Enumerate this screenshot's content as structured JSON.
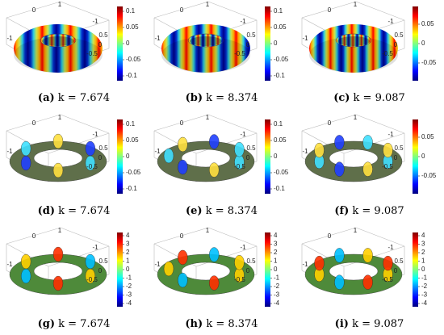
{
  "panels": [
    {
      "label": "(a)",
      "text": "k = 7.674",
      "colorbar": [
        "0.1",
        "0.05",
        "0",
        "-0.05",
        "-0.1"
      ],
      "axes": [
        "-1",
        "0",
        "1",
        "-1",
        "0.5",
        "0",
        "-0.5"
      ]
    },
    {
      "label": "(b)",
      "text": "k = 8.374",
      "colorbar": [
        "0.1",
        "0.05",
        "0",
        "-0.05",
        "-0.1"
      ],
      "axes": [
        "-1",
        "0",
        "1",
        "-1",
        "0.5",
        "0",
        "-0.5"
      ]
    },
    {
      "label": "(c)",
      "text": "k = 9.087",
      "colorbar": [
        "0.05",
        "0",
        "-0.05"
      ],
      "axes": [
        "-1",
        "0",
        "1",
        "-1",
        "0.5",
        "0",
        "-0.5"
      ]
    },
    {
      "label": "(d)",
      "text": "k = 7.674",
      "colorbar": [
        "0.1",
        "0.05",
        "0",
        "-0.05",
        "-0.1"
      ],
      "axes": [
        "-1",
        "0",
        "1",
        "-1",
        "0.5",
        "0",
        "-0.5"
      ]
    },
    {
      "label": "(e)",
      "text": "k = 8.374",
      "colorbar": [
        "0.1",
        "0.05",
        "0",
        "-0.05",
        "-0.1"
      ],
      "axes": [
        "-1",
        "0",
        "1",
        "-1",
        "0.5",
        "0",
        "-0.5"
      ]
    },
    {
      "label": "(f)",
      "text": "k = 9.087",
      "colorbar": [
        "0.05",
        "0",
        "-0.05"
      ],
      "axes": [
        "-1",
        "0",
        "1",
        "-1",
        "0.5",
        "0",
        "-0.5"
      ]
    },
    {
      "label": "(g)",
      "text": "k = 7.674",
      "colorbar": [
        "4",
        "3",
        "2",
        "1",
        "0",
        "-1",
        "-2",
        "-3",
        "-4"
      ],
      "axes": [
        "-1",
        "0",
        "1",
        "-1",
        "0.5",
        "0",
        "-0.5"
      ]
    },
    {
      "label": "(h)",
      "text": "k = 8.374",
      "colorbar": [
        "4",
        "3",
        "2",
        "1",
        "0",
        "-1",
        "-2",
        "-3",
        "-4"
      ],
      "axes": [
        "-1",
        "0",
        "1",
        "-1",
        "0.5",
        "0",
        "-0.5"
      ]
    },
    {
      "label": "(i)",
      "text": "k = 9.087",
      "colorbar": [
        "4",
        "3",
        "2",
        "1",
        "0",
        "-1",
        "-2",
        "-3",
        "-4"
      ],
      "axes": [
        "-1",
        "0",
        "1",
        "-1",
        "0.5",
        "0",
        "-0.5"
      ]
    }
  ]
}
